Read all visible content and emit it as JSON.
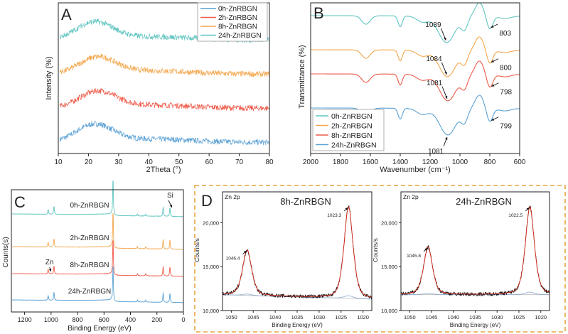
{
  "colors": {
    "s0h": "#5fc4c0",
    "s2h": "#f3a64b",
    "s8h": "#ee5b49",
    "s24h": "#5aa1d4",
    "fit": "#e03020",
    "raw": "#111111",
    "bg": "#8aaad0",
    "frame": "#e9a441"
  },
  "chart_data": [
    {
      "panel_letter": "A",
      "type": "line",
      "xlabel": "2Theta (°)",
      "ylabel": "Intensity (%)",
      "xlim": [
        10,
        80
      ],
      "x_ticks": [
        "10",
        "20",
        "30",
        "40",
        "50",
        "60",
        "70",
        "80"
      ],
      "legend": "top-right",
      "series": [
        {
          "name": "0h-ZnRBGN",
          "color_key": "s24h",
          "broad_peak_2theta": 22,
          "peak_intensity": 0.75,
          "noise": 0.25,
          "baseline": 0.05,
          "offset": 0
        },
        {
          "name": "2h-ZnRBGN",
          "color_key": "s8h",
          "broad_peak_2theta": 23,
          "peak_intensity": 0.7,
          "noise": 0.25,
          "baseline": 0.05,
          "offset": 1
        },
        {
          "name": "8h-ZnRBGN",
          "color_key": "s2h",
          "broad_peak_2theta": 23,
          "peak_intensity": 0.7,
          "noise": 0.25,
          "baseline": 0.05,
          "offset": 2
        },
        {
          "name": "24h-ZnRBGN",
          "color_key": "s0h",
          "broad_peak_2theta": 22,
          "peak_intensity": 0.75,
          "noise": 0.25,
          "baseline": 0.05,
          "offset": 3
        }
      ],
      "legend_items": [
        {
          "name": "0h-ZnRBGN",
          "color_key": "s24h"
        },
        {
          "name": "2h-ZnRBGN",
          "color_key": "s8h"
        },
        {
          "name": "8h-ZnRBGN",
          "color_key": "s2h"
        },
        {
          "name": "24h-ZnRBGN",
          "color_key": "s0h"
        }
      ]
    },
    {
      "panel_letter": "B",
      "type": "line",
      "xlabel": "Wavenumber (cm⁻¹)",
      "ylabel": "Transmittance (%)",
      "xlim": [
        2000,
        600
      ],
      "x_ticks": [
        "2000",
        "1800",
        "1600",
        "1400",
        "1200",
        "1000",
        "800",
        "600"
      ],
      "legend": "bottom-left",
      "series": [
        {
          "name": "0h-ZnRBGN",
          "color_key": "s0h",
          "offset": 3,
          "peak_si_o": 1089,
          "peak_si_o_si": 803
        },
        {
          "name": "2h-ZnRBGN",
          "color_key": "s2h",
          "offset": 2,
          "peak_si_o": 1084,
          "peak_si_o_si": 800
        },
        {
          "name": "8h-ZnRBGN",
          "color_key": "s8h",
          "offset": 1,
          "peak_si_o": 1081,
          "peak_si_o_si": 798
        },
        {
          "name": "24h-ZnRBGN",
          "color_key": "s24h",
          "offset": 0,
          "peak_si_o": 1081,
          "peak_si_o_si": 799
        }
      ],
      "annotations": [
        {
          "label": "1089",
          "wavenumber": 1089,
          "series": 0,
          "side": "left"
        },
        {
          "label": "803",
          "wavenumber": 803,
          "series": 0,
          "side": "right"
        },
        {
          "label": "800",
          "wavenumber": 800,
          "series": 1,
          "side": "right"
        },
        {
          "label": "1084",
          "wavenumber": 1084,
          "series": 1,
          "side": "left"
        },
        {
          "label": "798",
          "wavenumber": 798,
          "series": 2,
          "side": "right"
        },
        {
          "label": "1081",
          "wavenumber": 1081,
          "series": 2,
          "side": "left"
        },
        {
          "label": "799",
          "wavenumber": 799,
          "series": 3,
          "side": "right"
        },
        {
          "label": "1081",
          "wavenumber": 1081,
          "series": 3,
          "side": "below"
        }
      ]
    },
    {
      "panel_letter": "C",
      "type": "line",
      "xlabel": "Binding Energy (eV)",
      "ylabel": "Counts(s)",
      "xlim": [
        1300,
        0
      ],
      "x_ticks": [
        "1200",
        "1000",
        "800",
        "600",
        "400",
        "200",
        "0"
      ],
      "series": [
        {
          "name": "0h-ZnRBGN",
          "color_key": "s0h",
          "offset": 3
        },
        {
          "name": "2h-ZnRBGN",
          "color_key": "s2h",
          "offset": 2
        },
        {
          "name": "8h-ZnRBGN",
          "color_key": "s8h",
          "offset": 1
        },
        {
          "name": "24h-ZnRBGN",
          "color_key": "s24h",
          "offset": 0
        }
      ],
      "peaks_eV": [
        {
          "energy": 1022,
          "height": 0.12
        },
        {
          "energy": 978,
          "height": 0.2
        },
        {
          "energy": 532,
          "height": 0.9
        },
        {
          "energy": 347,
          "height": 0.05
        },
        {
          "energy": 285,
          "height": 0.05
        },
        {
          "energy": 153,
          "height": 0.22
        },
        {
          "energy": 102,
          "height": 0.22
        }
      ],
      "annotations": [
        {
          "label": "Si",
          "energy": 102,
          "series": 0
        },
        {
          "label": "Zn",
          "energy": 1022,
          "series": 2
        }
      ]
    },
    {
      "panel_letter": "D",
      "type": "line",
      "sub": [
        {
          "region": "Zn 2p",
          "title": "8h-ZnRBGN",
          "xlabel": "Binding Energy (eV)",
          "ylabel": "Counts/s",
          "xlim": [
            1052,
            1018
          ],
          "ylim": [
            10000,
            23500
          ],
          "x_ticks": [
            "1050",
            "1045",
            "1040",
            "1035",
            "1030",
            "1025",
            "1020"
          ],
          "y_ticks": [
            "10,000",
            "15,000",
            "20,000"
          ],
          "y_tick_values": [
            10000,
            15000,
            20000
          ],
          "peaks": [
            {
              "energy": 1046.4,
              "counts": 16900,
              "label": "1046.4"
            },
            {
              "energy": 1023.3,
              "counts": 21800,
              "label": "1023.3"
            }
          ],
          "baseline_start": 11800,
          "baseline_end": 11300
        },
        {
          "region": "Zn 2p",
          "title": "24h-ZnRBGN",
          "xlabel": "Binding Energy (eV)",
          "ylabel": "Counts/s",
          "xlim": [
            1052,
            1018
          ],
          "ylim": [
            10000,
            23500
          ],
          "x_ticks": [
            "1050",
            "1045",
            "1040",
            "1035",
            "1030",
            "1025",
            "1020"
          ],
          "y_ticks": [
            "10,000",
            "15,000",
            "20,000"
          ],
          "y_tick_values": [
            10000,
            15000,
            20000
          ],
          "peaks": [
            {
              "energy": 1045.8,
              "counts": 17200,
              "label": "1045.8"
            },
            {
              "energy": 1022.5,
              "counts": 21800,
              "label": "1022.5"
            }
          ],
          "baseline_start": 11800,
          "baseline_end": 11800
        }
      ]
    }
  ]
}
